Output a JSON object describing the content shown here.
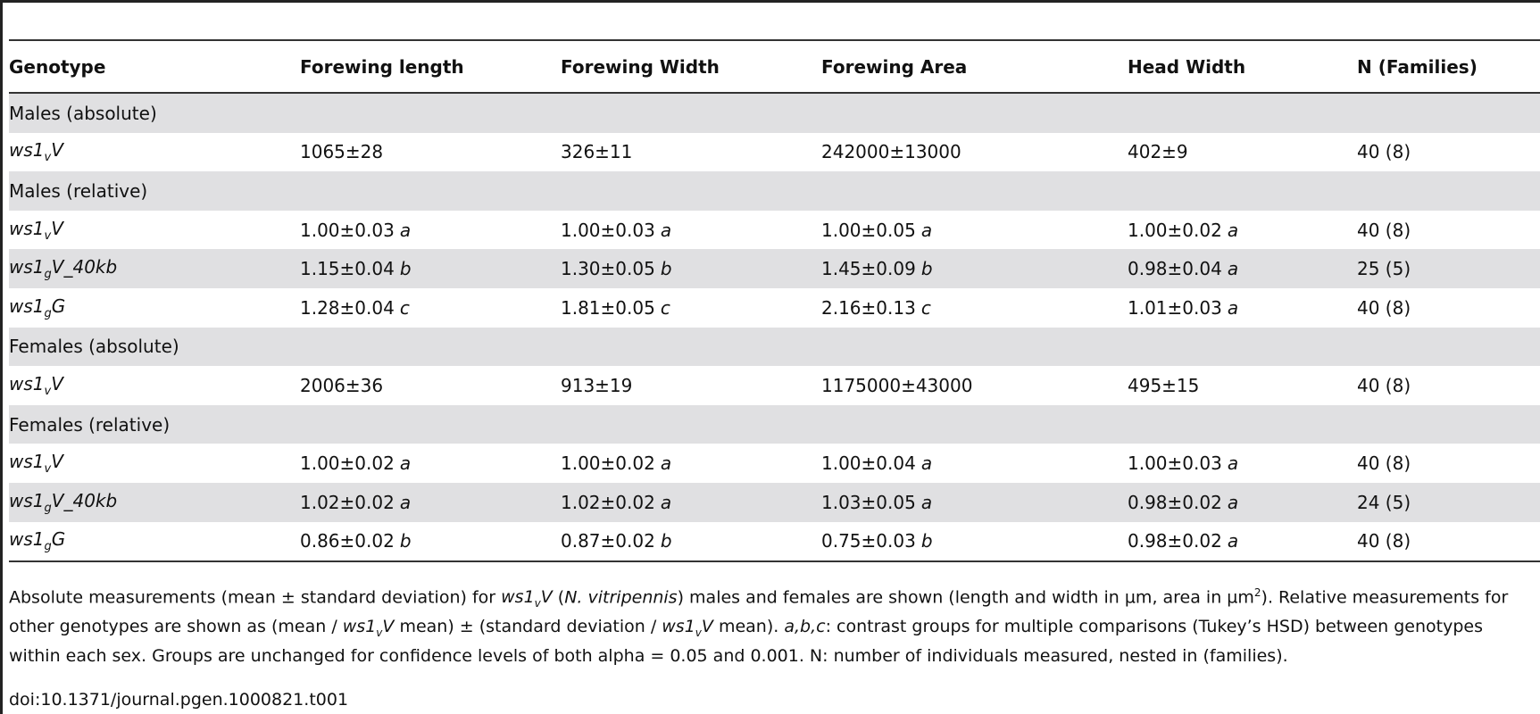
{
  "table": {
    "headers": [
      "Genotype",
      "Forewing length",
      "Forewing Width",
      "Forewing Area",
      "Head Width",
      "N (Families)"
    ],
    "rows": [
      {
        "kind": "section",
        "label": "Males (absolute)"
      },
      {
        "kind": "data",
        "shaded": false,
        "geno": {
          "prefix": "ws1",
          "sub": "v",
          "suffix": "V"
        },
        "cells": [
          {
            "v": "1065±28",
            "g": ""
          },
          {
            "v": "326±11",
            "g": ""
          },
          {
            "v": "242000±13000",
            "g": ""
          },
          {
            "v": "402±9",
            "g": ""
          }
        ],
        "n": "40 (8)"
      },
      {
        "kind": "section",
        "label": "Males (relative)"
      },
      {
        "kind": "data",
        "shaded": false,
        "geno": {
          "prefix": "ws1",
          "sub": "v",
          "suffix": "V"
        },
        "cells": [
          {
            "v": "1.00±0.03",
            "g": "a"
          },
          {
            "v": "1.00±0.03",
            "g": "a"
          },
          {
            "v": "1.00±0.05",
            "g": "a"
          },
          {
            "v": "1.00±0.02",
            "g": "a"
          }
        ],
        "n": "40 (8)"
      },
      {
        "kind": "data",
        "shaded": true,
        "geno": {
          "prefix": "ws1",
          "sub": "g",
          "suffix": "V_40kb"
        },
        "cells": [
          {
            "v": "1.15±0.04",
            "g": "b"
          },
          {
            "v": "1.30±0.05",
            "g": "b"
          },
          {
            "v": "1.45±0.09",
            "g": "b"
          },
          {
            "v": "0.98±0.04",
            "g": "a"
          }
        ],
        "n": "25 (5)"
      },
      {
        "kind": "data",
        "shaded": false,
        "geno": {
          "prefix": "ws1",
          "sub": "g",
          "suffix": "G"
        },
        "cells": [
          {
            "v": "1.28±0.04",
            "g": "c"
          },
          {
            "v": "1.81±0.05",
            "g": "c"
          },
          {
            "v": "2.16±0.13",
            "g": "c"
          },
          {
            "v": "1.01±0.03",
            "g": "a"
          }
        ],
        "n": "40 (8)"
      },
      {
        "kind": "section",
        "label": "Females (absolute)"
      },
      {
        "kind": "data",
        "shaded": false,
        "geno": {
          "prefix": "ws1",
          "sub": "v",
          "suffix": "V"
        },
        "cells": [
          {
            "v": "2006±36",
            "g": ""
          },
          {
            "v": "913±19",
            "g": ""
          },
          {
            "v": "1175000±43000",
            "g": ""
          },
          {
            "v": "495±15",
            "g": ""
          }
        ],
        "n": "40 (8)"
      },
      {
        "kind": "section",
        "label": "Females (relative)"
      },
      {
        "kind": "data",
        "shaded": false,
        "geno": {
          "prefix": "ws1",
          "sub": "v",
          "suffix": "V"
        },
        "cells": [
          {
            "v": "1.00±0.02",
            "g": "a"
          },
          {
            "v": "1.00±0.02",
            "g": "a"
          },
          {
            "v": "1.00±0.04",
            "g": "a"
          },
          {
            "v": "1.00±0.03",
            "g": "a"
          }
        ],
        "n": "40 (8)"
      },
      {
        "kind": "data",
        "shaded": true,
        "geno": {
          "prefix": "ws1",
          "sub": "g",
          "suffix": "V_40kb"
        },
        "cells": [
          {
            "v": "1.02±0.02",
            "g": "a"
          },
          {
            "v": "1.02±0.02",
            "g": "a"
          },
          {
            "v": "1.03±0.05",
            "g": "a"
          },
          {
            "v": "0.98±0.02",
            "g": "a"
          }
        ],
        "n": "24 (5)"
      },
      {
        "kind": "data",
        "shaded": false,
        "geno": {
          "prefix": "ws1",
          "sub": "g",
          "suffix": "G"
        },
        "cells": [
          {
            "v": "0.86±0.02",
            "g": "b"
          },
          {
            "v": "0.87±0.02",
            "g": "b"
          },
          {
            "v": "0.75±0.03",
            "g": "b"
          },
          {
            "v": "0.98±0.02",
            "g": "a"
          }
        ],
        "n": "40 (8)"
      }
    ]
  },
  "footnote": {
    "s1": "Absolute measurements (mean ± standard deviation) for ",
    "s1_geno_prefix": "ws1",
    "s1_geno_sub": "v",
    "s1_geno_suffix": "V",
    "s2": " (",
    "s2_species": "N. vitripennis",
    "s3": ") males and females are shown (length and width in µm, area in µm",
    "s3_sup": "2",
    "s4": "). Relative measurements for other genotypes are shown as (mean / ",
    "s5": " mean) ± (standard deviation / ",
    "s6": " mean). ",
    "s6_groups": "a,b,c",
    "s7": ": contrast groups for multiple comparisons (Tukey’s HSD) between genotypes within each sex. Groups are unchanged for confidence levels of both alpha = 0.05 and 0.001. N: number of individuals measured, nested in (families)."
  },
  "doi": "doi:10.1371/journal.pgen.1000821.t001"
}
